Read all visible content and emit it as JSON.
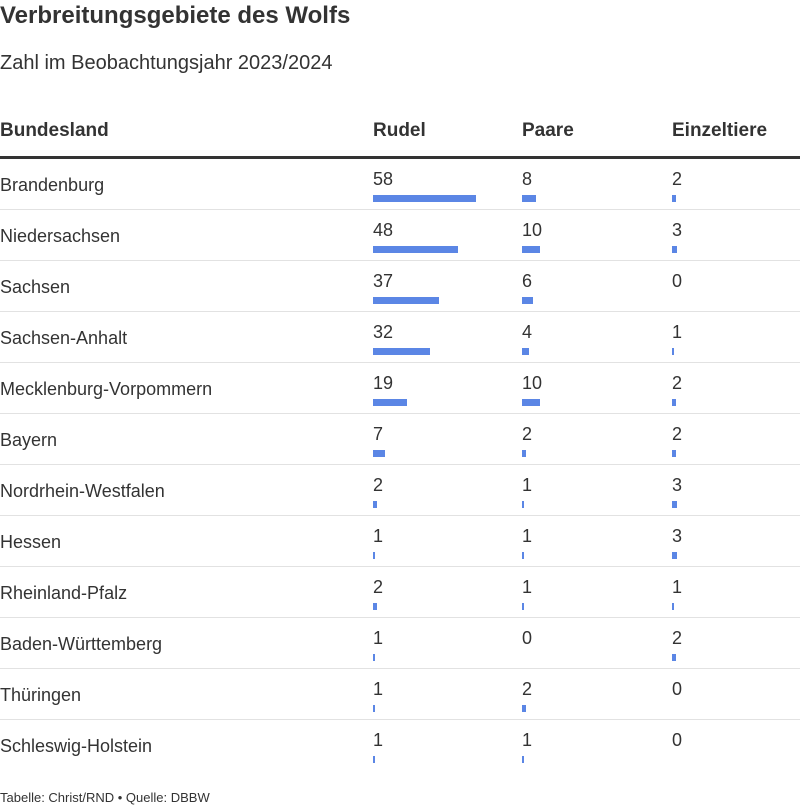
{
  "title": "Verbreitungsgebiete des Wolfs",
  "subtitle": "Zahl im Beobachtungsjahr 2023/2024",
  "footer": "Tabelle: Christ/RND • Quelle: DBBW",
  "colors": {
    "bar": "#5b86e5",
    "text": "#333333"
  },
  "chart_data": {
    "type": "table",
    "columns": [
      "Bundesland",
      "Rudel",
      "Paare",
      "Einzeltiere"
    ],
    "rows": [
      {
        "name": "Brandenburg",
        "values": [
          58,
          8,
          2
        ]
      },
      {
        "name": "Niedersachsen",
        "values": [
          48,
          10,
          3
        ]
      },
      {
        "name": "Sachsen",
        "values": [
          37,
          6,
          0
        ]
      },
      {
        "name": "Sachsen-Anhalt",
        "values": [
          32,
          4,
          1
        ]
      },
      {
        "name": "Mecklenburg-Vorpommern",
        "values": [
          19,
          10,
          2
        ]
      },
      {
        "name": "Bayern",
        "values": [
          7,
          2,
          2
        ]
      },
      {
        "name": "Nordrhein-Westfalen",
        "values": [
          2,
          1,
          3
        ]
      },
      {
        "name": "Hessen",
        "values": [
          1,
          1,
          3
        ]
      },
      {
        "name": "Rheinland-Pfalz",
        "values": [
          2,
          1,
          1
        ]
      },
      {
        "name": "Baden-Württemberg",
        "values": [
          1,
          0,
          2
        ]
      },
      {
        "name": "Thüringen",
        "values": [
          1,
          2,
          0
        ]
      },
      {
        "name": "Schleswig-Holstein",
        "values": [
          1,
          1,
          0
        ]
      }
    ]
  }
}
